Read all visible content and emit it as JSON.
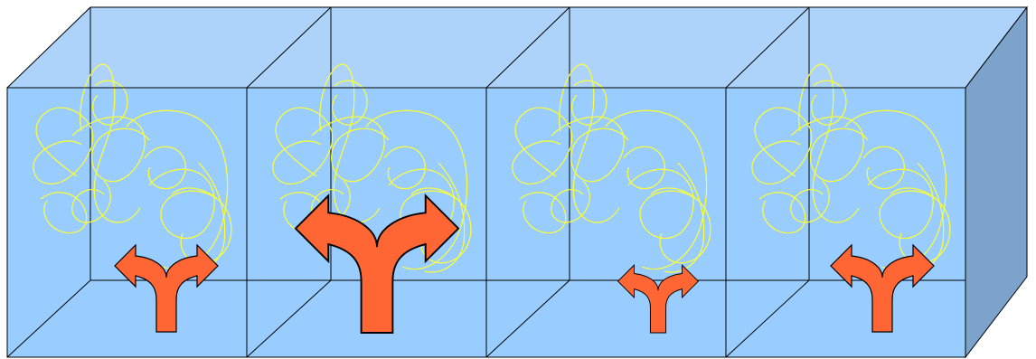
{
  "diagram": {
    "cells": [
      {
        "arrow": "fork-arrow-medium"
      },
      {
        "arrow": "fork-arrow-large"
      },
      {
        "arrow": "fork-arrow-small"
      },
      {
        "arrow": "fork-arrow-medium"
      }
    ],
    "colors": {
      "front_face": "#99CCFF",
      "top_face": "#ADD3FA",
      "side_face": "#7BA3CB",
      "edge_line": "#000000",
      "arrow_fill": "#FF6633",
      "arrow_outline": "#000000",
      "tangle_line": "#FFFF33"
    }
  }
}
